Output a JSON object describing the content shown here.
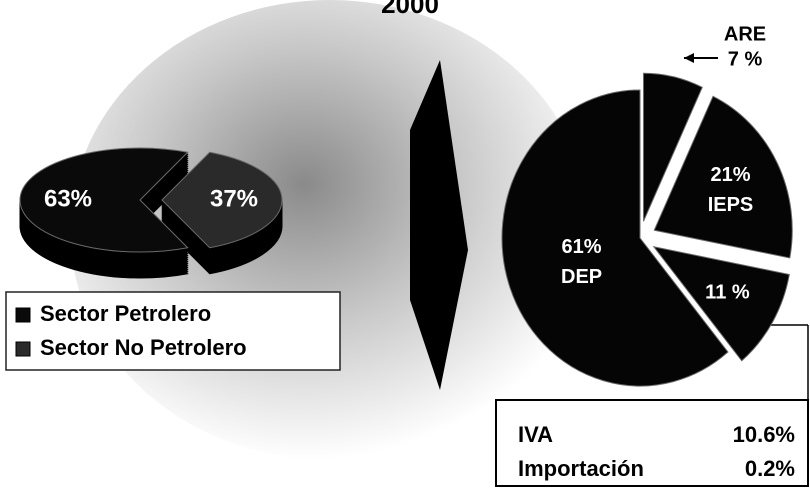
{
  "title": "2000",
  "chart_data": [
    {
      "type": "pie",
      "categories": [
        "Sector Petrolero",
        "Sector No Petrolero"
      ],
      "values": [
        63,
        37
      ],
      "value_labels": [
        "63%",
        "37%"
      ],
      "colors": [
        "#0a0a0a",
        "#2a2a2a"
      ],
      "legend": "bottom-left"
    },
    {
      "type": "pie",
      "categories": [
        "DEP",
        "ARE",
        "IEPS",
        null
      ],
      "values": [
        61,
        7,
        21,
        11
      ],
      "value_labels": [
        "61%",
        "7 %",
        "21%",
        "11 %"
      ],
      "colors": [
        "#050505",
        "#050505",
        "#050505",
        "#050505"
      ]
    }
  ],
  "breakdown": {
    "rows": [
      [
        "IVA",
        "10.6%"
      ],
      [
        "Importación",
        "0.2%"
      ]
    ]
  }
}
